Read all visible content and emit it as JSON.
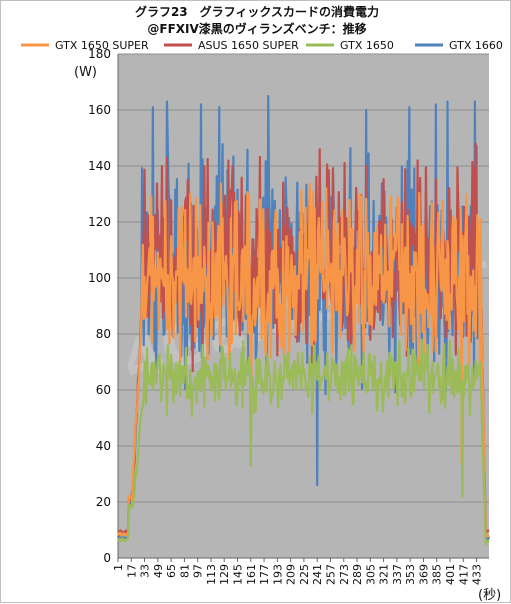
{
  "chart_data": {
    "type": "line",
    "title_line1": "グラフ23　グラフィックスカードの消費電力",
    "title_line2": "@FFXIV漆黒のヴィランズベンチ：推移",
    "y_unit": "(W)",
    "x_unit": "(秒)",
    "ylim": [
      0,
      180
    ],
    "y_ticks": [
      "0",
      "20",
      "40",
      "60",
      "80",
      "100",
      "120",
      "140",
      "160",
      "180"
    ],
    "x_ticks": [
      "1",
      "17",
      "33",
      "49",
      "65",
      "81",
      "97",
      "113",
      "129",
      "145",
      "161",
      "177",
      "193",
      "209",
      "225",
      "241",
      "257",
      "273",
      "289",
      "305",
      "321",
      "337",
      "353",
      "369",
      "385",
      "401",
      "417",
      "433"
    ],
    "x_range": [
      1,
      448
    ],
    "grid": true,
    "plot_background": "#b5b5b5",
    "watermark": "4Gamer.net",
    "series": [
      {
        "name": "GTX 1650 SUPER",
        "color": "#f79646",
        "idle_start": 8.5,
        "ramp_end": 22,
        "run_start": 30,
        "run_end": 438,
        "idle_end": 8,
        "base": 98,
        "amp": 18,
        "spikes": [
          [
            88,
            130
          ],
          [
            161,
            34
          ],
          [
            172,
            128
          ],
          [
            252,
            132
          ],
          [
            292,
            130
          ],
          [
            415,
            34
          ],
          [
            421,
            130
          ]
        ]
      },
      {
        "name": "ASUS 1650 SUPER",
        "color": "#c0504d",
        "idle_start": 9.5,
        "ramp_end": 21,
        "run_start": 30,
        "run_end": 438,
        "idle_end": 10,
        "base": 104,
        "amp": 20,
        "spikes": [
          [
            60,
            143
          ],
          [
            105,
            140
          ],
          [
            161,
            33
          ],
          [
            244,
            146
          ],
          [
            300,
            140
          ],
          [
            362,
            142
          ],
          [
            432,
            148
          ]
        ]
      },
      {
        "name": "GTX 1650",
        "color": "#9bbb59",
        "idle_start": 6.5,
        "ramp_end": 18,
        "run_start": 32,
        "run_end": 438,
        "idle_end": 5.5,
        "base": 64,
        "amp": 7,
        "spikes": [
          [
            131,
            60
          ],
          [
            161,
            33
          ],
          [
            330,
            72
          ],
          [
            416,
            22
          ]
        ]
      },
      {
        "name": "GTX 1660",
        "color": "#4f81bd",
        "idle_start": 7.5,
        "ramp_end": 20,
        "run_start": 30,
        "run_end": 438,
        "idle_end": 7,
        "base": 100,
        "amp": 24,
        "spikes": [
          [
            43,
            161
          ],
          [
            60,
            163
          ],
          [
            101,
            162
          ],
          [
            123,
            161
          ],
          [
            182,
            165
          ],
          [
            241,
            26
          ],
          [
            300,
            160
          ],
          [
            352,
            161
          ],
          [
            384,
            162
          ],
          [
            398,
            163
          ],
          [
            431,
            163
          ]
        ]
      }
    ]
  }
}
